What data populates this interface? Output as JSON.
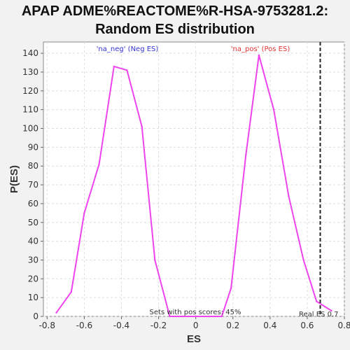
{
  "chart_data": {
    "type": "line",
    "title_lines": [
      "APAP ADME%REACTOME%R-HSA-9753281.2:",
      "Random ES distribution"
    ],
    "xlabel": "ES",
    "ylabel": "P(ES)",
    "xlim": [
      -0.82,
      0.8
    ],
    "ylim": [
      0,
      146
    ],
    "x_ticks": [
      -0.8,
      -0.6,
      -0.4,
      -0.2,
      0,
      0.2,
      0.4,
      0.6,
      0.8
    ],
    "x_tick_labels": [
      "-0.8",
      "-0.6",
      "-0.4",
      "-0.2",
      "0",
      "0.2",
      "0.4",
      "0.6",
      "0.8"
    ],
    "y_ticks": [
      0,
      10,
      20,
      30,
      40,
      50,
      60,
      70,
      80,
      90,
      100,
      110,
      120,
      130,
      140
    ],
    "y_tick_labels": [
      "0",
      "10",
      "20",
      "30",
      "40",
      "50",
      "60",
      "70",
      "80",
      "90",
      "100",
      "110",
      "120",
      "130",
      "140"
    ],
    "grid": true,
    "series": [
      {
        "color": "#ee44ee",
        "x": [
          -0.75,
          -0.67,
          -0.6,
          -0.52,
          -0.44,
          -0.37,
          -0.29,
          -0.22,
          -0.14,
          -0.07,
          0.0,
          0.07,
          0.14,
          0.19,
          0.27,
          0.34,
          0.42,
          0.5,
          0.58,
          0.65,
          0.73
        ],
        "y": [
          2,
          13,
          55,
          81,
          133,
          131,
          101,
          30,
          0,
          0,
          0,
          0,
          0,
          15,
          86,
          139,
          110,
          64,
          30,
          8,
          3
        ]
      }
    ],
    "real_es": 0.67,
    "annotations": {
      "neg_label": "'na_neg' (Neg ES)",
      "pos_label": "'na_pos' (Pos ES)",
      "sets_label": "Sets with pos scores: 45%",
      "real_es_label": "Real ES 0.7"
    },
    "colors": {
      "neg_label": "#3333cc",
      "pos_label": "#dd3333",
      "sets_label": "#333333",
      "real_es_label": "#333333",
      "real_es_line": "#222222"
    }
  }
}
